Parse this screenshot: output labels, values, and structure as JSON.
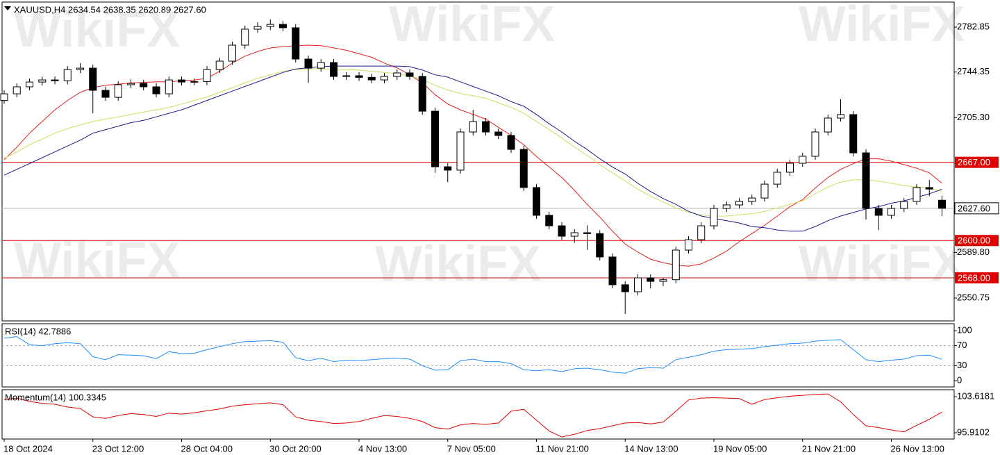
{
  "chart_data": [
    {
      "type": "candlestick",
      "title": "XAUUSD,H4  2634.54 2638.35 2620.89 2627.60",
      "watermark": "WikiFX",
      "categories": [
        "18 Oct 2024",
        null,
        null,
        null,
        null,
        null,
        null,
        "23 Oct 12:00",
        null,
        null,
        null,
        null,
        null,
        null,
        "28 Oct 04:00",
        null,
        null,
        null,
        null,
        null,
        null,
        "30 Oct 20:00",
        null,
        null,
        null,
        null,
        null,
        null,
        "4 Nov 13:00",
        null,
        null,
        null,
        null,
        null,
        null,
        "7 Nov 05:00",
        null,
        null,
        null,
        null,
        null,
        null,
        "11 Nov 21:00",
        null,
        null,
        null,
        null,
        null,
        null,
        "14 Nov 13:00",
        null,
        null,
        null,
        null,
        null,
        null,
        "19 Nov 05:00",
        null,
        null,
        null,
        null,
        null,
        null,
        "21 Nov 21:00",
        null,
        null,
        null,
        null,
        null,
        null,
        "26 Nov 13:00",
        null,
        null,
        null,
        null
      ],
      "open": [
        2720.0,
        2725.7,
        2731.7,
        2735.8,
        2737.6,
        2736.9,
        2746.5,
        2747.7,
        2728.7,
        2722.7,
        2733.5,
        2734.6,
        2731.7,
        2725.7,
        2737.6,
        2735.8,
        2736.2,
        2746.5,
        2753.7,
        2767.4,
        2781.1,
        2783.4,
        2785.2,
        2782.3,
        2755.5,
        2747.7,
        2752.5,
        2740.6,
        2741.2,
        2739.8,
        2737.6,
        2740.6,
        2743.6,
        2740.6,
        2710.8,
        2663.2,
        2660.3,
        2693.0,
        2701.9,
        2693.0,
        2690.0,
        2678.1,
        2645.4,
        2621.6,
        2612.6,
        2603.7,
        2606.7,
        2605.9,
        2585.9,
        2562.1,
        2556.1,
        2568.0,
        2565.0,
        2566.4,
        2591.8,
        2600.7,
        2612.6,
        2627.5,
        2630.5,
        2633.5,
        2636.4,
        2648.3,
        2658.5,
        2666.2,
        2672.2,
        2693.0,
        2704.9,
        2707.9,
        2675.1,
        2627.5,
        2621.6,
        2627.5,
        2633.5,
        2645.4,
        2634.54
      ],
      "high": [
        2728.7,
        2734.7,
        2738.8,
        2740.6,
        2740.6,
        2749.5,
        2752.0,
        2750.7,
        2731.7,
        2736.5,
        2738.0,
        2737.6,
        2734.7,
        2740.6,
        2740.6,
        2738.8,
        2749.5,
        2756.7,
        2770.4,
        2784.1,
        2787.0,
        2789.5,
        2788.2,
        2785.3,
        2758.5,
        2755.5,
        2755.5,
        2744.2,
        2744.2,
        2742.8,
        2743.6,
        2746.6,
        2746.6,
        2743.6,
        2713.8,
        2666.2,
        2696.0,
        2712.0,
        2704.9,
        2696.0,
        2693.0,
        2681.1,
        2648.4,
        2624.6,
        2615.6,
        2609.7,
        2613.0,
        2608.9,
        2588.9,
        2565.1,
        2571.0,
        2571.0,
        2568.0,
        2594.8,
        2603.7,
        2615.6,
        2630.5,
        2633.5,
        2636.5,
        2639.4,
        2651.3,
        2661.5,
        2669.2,
        2675.2,
        2696.0,
        2707.9,
        2721.0,
        2710.9,
        2678.1,
        2630.5,
        2630.5,
        2636.5,
        2648.4,
        2652.0,
        2638.35
      ],
      "low": [
        2717.0,
        2722.7,
        2728.7,
        2732.8,
        2733.9,
        2733.9,
        2743.5,
        2709.0,
        2719.7,
        2719.7,
        2730.5,
        2728.7,
        2722.7,
        2722.7,
        2732.8,
        2732.8,
        2733.2,
        2743.5,
        2750.7,
        2764.4,
        2778.1,
        2780.4,
        2779.3,
        2752.5,
        2735.0,
        2744.7,
        2737.6,
        2737.6,
        2736.8,
        2734.6,
        2734.6,
        2737.6,
        2737.6,
        2707.8,
        2658.0,
        2650.0,
        2657.3,
        2690.0,
        2690.0,
        2687.0,
        2675.1,
        2642.4,
        2618.6,
        2609.6,
        2600.7,
        2598.0,
        2592.0,
        2582.9,
        2559.1,
        2537.1,
        2553.1,
        2559.0,
        2561.0,
        2563.4,
        2588.8,
        2597.7,
        2609.6,
        2624.5,
        2627.5,
        2630.5,
        2633.4,
        2645.3,
        2655.5,
        2663.2,
        2669.2,
        2690.0,
        2701.9,
        2672.1,
        2618.0,
        2609.0,
        2618.6,
        2624.5,
        2630.5,
        2638.0,
        2620.89
      ],
      "close": [
        2725.7,
        2731.7,
        2735.8,
        2737.6,
        2736.9,
        2746.5,
        2747.7,
        2728.7,
        2722.7,
        2733.5,
        2734.6,
        2731.7,
        2725.7,
        2737.6,
        2735.8,
        2736.2,
        2746.5,
        2753.7,
        2767.4,
        2781.1,
        2783.4,
        2785.2,
        2782.3,
        2755.5,
        2747.7,
        2752.5,
        2740.6,
        2741.2,
        2739.8,
        2737.6,
        2740.6,
        2743.6,
        2740.6,
        2710.8,
        2663.2,
        2660.3,
        2693.0,
        2701.9,
        2693.0,
        2690.0,
        2678.1,
        2645.4,
        2621.6,
        2612.6,
        2603.7,
        2606.7,
        2605.9,
        2585.9,
        2562.1,
        2556.1,
        2568.0,
        2565.0,
        2566.4,
        2591.8,
        2600.7,
        2612.6,
        2627.5,
        2630.5,
        2633.5,
        2636.4,
        2648.3,
        2658.5,
        2666.2,
        2672.2,
        2693.0,
        2704.9,
        2707.9,
        2675.1,
        2627.5,
        2621.6,
        2627.5,
        2633.5,
        2645.4,
        2644.1,
        2627.6
      ],
      "up_color": "#ffffff",
      "down_color": "#000000",
      "series": [
        {
          "color": "#e0201c",
          "values": [
            2669.2,
            2680,
            2692,
            2702,
            2712,
            2720,
            2727,
            2731,
            2733,
            2734,
            2735,
            2735.5,
            2736,
            2736,
            2737,
            2737.5,
            2739,
            2745,
            2752,
            2758,
            2762,
            2765,
            2766,
            2767,
            2767.4,
            2767,
            2765,
            2763,
            2760,
            2757,
            2752,
            2748,
            2742,
            2735,
            2725,
            2717,
            2712,
            2708,
            2704,
            2697,
            2690,
            2682,
            2672,
            2663,
            2654,
            2643,
            2631,
            2620,
            2608,
            2597,
            2590,
            2584,
            2581,
            2579,
            2578,
            2580,
            2585,
            2591,
            2599,
            2606,
            2613,
            2621,
            2629,
            2635,
            2645,
            2654,
            2661,
            2666,
            2670,
            2670,
            2668,
            2665,
            2662,
            2658,
            2649
          ]
        },
        {
          "color": "#c8e05a",
          "values": [
            2670.4,
            2676,
            2682,
            2687,
            2692,
            2696,
            2699,
            2702,
            2704,
            2706,
            2708,
            2710,
            2712,
            2714,
            2717,
            2720,
            2723,
            2727,
            2731,
            2735,
            2739,
            2742,
            2745,
            2746.5,
            2747,
            2747,
            2746.5,
            2746.5,
            2746,
            2745,
            2744,
            2743,
            2741,
            2738,
            2733,
            2729,
            2726,
            2724,
            2722,
            2718,
            2714,
            2709,
            2702,
            2695,
            2688,
            2680,
            2673,
            2665,
            2658,
            2651,
            2644,
            2638,
            2633,
            2628,
            2624,
            2622,
            2621,
            2621,
            2622,
            2623,
            2625,
            2628,
            2631,
            2634,
            2640,
            2646,
            2650,
            2652,
            2652,
            2651,
            2649,
            2647,
            2646,
            2645,
            2642
          ]
        },
        {
          "color": "#1a1a8c",
          "values": [
            2656,
            2661,
            2666,
            2671,
            2676,
            2681,
            2686,
            2692,
            2695,
            2698,
            2701,
            2703,
            2706,
            2709,
            2712,
            2716,
            2720,
            2724,
            2728,
            2732,
            2736,
            2740,
            2744,
            2747,
            2748,
            2749,
            2749.5,
            2749.5,
            2749.5,
            2749.5,
            2749.5,
            2749.5,
            2749,
            2746,
            2742,
            2740,
            2736,
            2732,
            2728,
            2724,
            2719,
            2715,
            2708,
            2700,
            2693,
            2685,
            2678,
            2670,
            2663,
            2657,
            2649,
            2642,
            2636,
            2631,
            2625,
            2621,
            2619,
            2617,
            2615,
            2612,
            2611,
            2609,
            2608,
            2608,
            2612,
            2617,
            2621,
            2624,
            2627,
            2629,
            2632,
            2634,
            2637,
            2640,
            2644
          ]
        }
      ],
      "ylim": [
        2531.1,
        2804.3
      ],
      "yticks": [
        2782.85,
        2744.35,
        {
          "value": 2705.3,
          "label": "2705.30"
        },
        {
          "value": 2589.8,
          "label": "2589.80"
        },
        2550.75
      ],
      "levels": [
        {
          "value": 2667,
          "label": "2667.00"
        },
        {
          "value": 2600,
          "label": "2600.00"
        },
        {
          "value": 2568,
          "label": "2568.00"
        }
      ],
      "level_color": "#e00000",
      "last_price": {
        "value": 2627.6,
        "label": "2627.60"
      }
    },
    {
      "type": "line",
      "title": "RSI(14) 42.7886",
      "series": [
        {
          "color": "#1e90ff",
          "values": [
            85,
            88,
            72,
            70,
            74,
            76,
            74,
            48,
            42,
            52,
            51,
            50,
            44,
            58,
            54,
            55,
            62,
            68,
            74,
            78,
            79,
            80,
            77,
            46,
            40,
            45,
            38,
            41,
            40,
            42,
            44,
            45,
            43,
            30,
            21,
            22,
            40,
            43,
            38,
            38,
            34,
            22,
            20,
            22,
            18,
            24,
            25,
            22,
            17,
            15,
            24,
            26,
            25,
            42,
            47,
            52,
            59,
            62,
            63,
            64,
            68,
            71,
            74,
            75,
            79,
            81,
            82,
            62,
            42,
            38,
            41,
            43,
            50,
            51,
            42.7886
          ]
        }
      ],
      "ylim": [
        -12.5,
        113.9
      ],
      "yticks": [
        100,
        70,
        30,
        0
      ],
      "levels": [
        70,
        30
      ]
    },
    {
      "type": "line",
      "title": "Momentum(14) 100.3345",
      "series": [
        {
          "color": "#e00000",
          "values": [
            103.0,
            103.3,
            102.6,
            102.2,
            102.0,
            101.4,
            101.1,
            99.3,
            99.0,
            99.6,
            100.0,
            99.8,
            99.4,
            100.1,
            99.9,
            100.2,
            100.6,
            101.0,
            101.6,
            101.9,
            102.1,
            102.3,
            101.9,
            99.3,
            98.6,
            98.3,
            97.9,
            98.0,
            98.3,
            99.0,
            99.6,
            99.4,
            99.0,
            98.3,
            97.0,
            96.7,
            97.6,
            97.9,
            97.7,
            98.0,
            100.5,
            100.9,
            98.6,
            96.3,
            95.0,
            95.6,
            96.4,
            96.8,
            97.4,
            98.0,
            98.1,
            97.8,
            98.2,
            100.5,
            102.9,
            103.3,
            103.4,
            103.3,
            103.2,
            102.0,
            103.0,
            103.4,
            103.7,
            103.9,
            104.1,
            104.2,
            102.5,
            99.8,
            97.4,
            97.0,
            96.5,
            96.1,
            97.5,
            98.8,
            100.3345
          ]
        }
      ],
      "ylim": [
        94.576,
        105.1
      ],
      "yticks": [
        103.6181,
        95.9102
      ]
    }
  ]
}
